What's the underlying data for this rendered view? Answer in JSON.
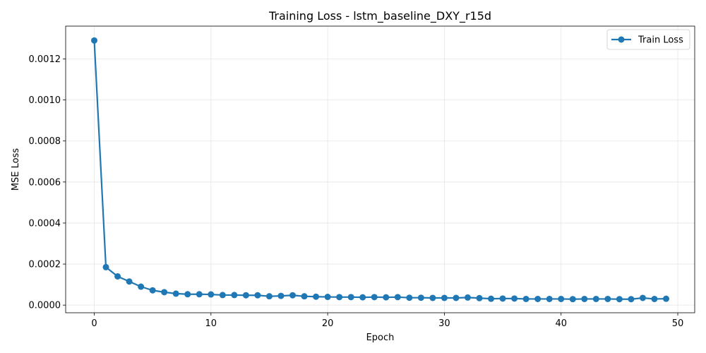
{
  "chart_data": {
    "type": "line",
    "title": "Training Loss - lstm_baseline_DXY_r15d",
    "xlabel": "Epoch",
    "ylabel": "MSE Loss",
    "xlim": [
      -2.45,
      51.45
    ],
    "ylim": [
      -3.73e-05,
      0.00136
    ],
    "xticks": [
      0,
      10,
      20,
      30,
      40,
      50
    ],
    "xtick_labels": [
      "0",
      "10",
      "20",
      "30",
      "40",
      "50"
    ],
    "yticks": [
      0,
      0.0002,
      0.0004,
      0.0006,
      0.0008,
      0.001,
      0.0012
    ],
    "ytick_labels": [
      "0.0000",
      "0.0002",
      "0.0004",
      "0.0006",
      "0.0008",
      "0.0010",
      "0.0012"
    ],
    "grid": true,
    "legend_position": "top-right",
    "colors": {
      "series": "#1f77b4",
      "grid": "#e6e6e6",
      "axis": "#000000"
    },
    "series": [
      {
        "name": "Train Loss",
        "x": [
          0,
          1,
          2,
          3,
          4,
          5,
          6,
          7,
          8,
          9,
          10,
          11,
          12,
          13,
          14,
          15,
          16,
          17,
          18,
          19,
          20,
          21,
          22,
          23,
          24,
          25,
          26,
          27,
          28,
          29,
          30,
          31,
          32,
          33,
          34,
          35,
          36,
          37,
          38,
          39,
          40,
          41,
          42,
          43,
          44,
          45,
          46,
          47,
          48,
          49
        ],
        "y": [
          0.00129,
          0.000185,
          0.00014,
          0.000115,
          9e-05,
          7.2e-05,
          6.3e-05,
          5.6e-05,
          5.3e-05,
          5.3e-05,
          5.2e-05,
          4.9e-05,
          4.9e-05,
          4.8e-05,
          4.8e-05,
          4.3e-05,
          4.5e-05,
          4.8e-05,
          4.3e-05,
          4.1e-05,
          4e-05,
          3.9e-05,
          3.9e-05,
          3.8e-05,
          3.9e-05,
          3.8e-05,
          3.9e-05,
          3.6e-05,
          3.6e-05,
          3.5e-05,
          3.5e-05,
          3.5e-05,
          3.7e-05,
          3.4e-05,
          3.1e-05,
          3.2e-05,
          3.2e-05,
          3e-05,
          3e-05,
          3e-05,
          3e-05,
          2.9e-05,
          3e-05,
          3e-05,
          3e-05,
          2.9e-05,
          2.9e-05,
          3.5e-05,
          3e-05,
          3.1e-05
        ]
      }
    ]
  }
}
